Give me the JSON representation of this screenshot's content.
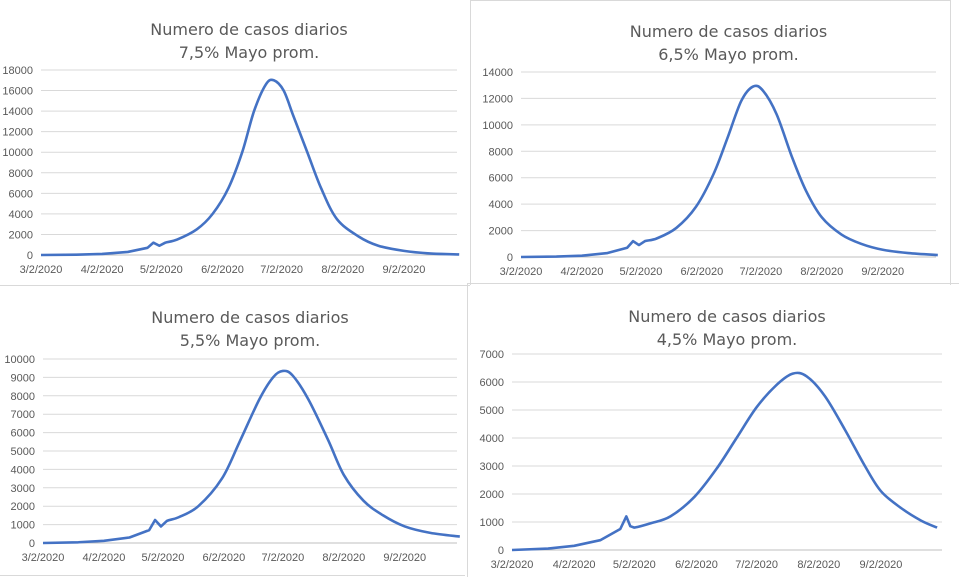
{
  "chart_data": [
    {
      "type": "line",
      "title": [
        "Numero de casos diarios",
        "7,5% Mayo prom."
      ],
      "ylim": [
        0,
        18000
      ],
      "yticks": [
        "0",
        "2000",
        "4000",
        "6000",
        "8000",
        "10000",
        "12000",
        "14000",
        "16000",
        "18000"
      ],
      "xticks": [
        "3/2/2020",
        "4/2/2020",
        "5/2/2020",
        "6/2/2020",
        "7/2/2020",
        "8/2/2020",
        "9/2/2020"
      ],
      "grid": true,
      "color": "#4472c4",
      "x": [
        "3/2",
        "3/20",
        "4/2",
        "4/15",
        "4/25",
        "4/28",
        "5/1",
        "5/4",
        "5/10",
        "5/20",
        "5/28",
        "6/5",
        "6/12",
        "6/18",
        "6/24",
        "6/28",
        "7/3",
        "7/8",
        "7/15",
        "7/22",
        "7/30",
        "8/10",
        "8/20",
        "9/2",
        "9/15",
        "9/30"
      ],
      "y": [
        0,
        30,
        100,
        300,
        700,
        1200,
        900,
        1200,
        1500,
        2500,
        4000,
        6500,
        10000,
        14000,
        16600,
        17000,
        16000,
        13500,
        10000,
        6500,
        3500,
        1800,
        900,
        400,
        150,
        50
      ]
    },
    {
      "type": "line",
      "title": [
        "Numero de casos diarios",
        "6,5% Mayo prom."
      ],
      "ylim": [
        0,
        14000
      ],
      "yticks": [
        "0",
        "2000",
        "4000",
        "6000",
        "8000",
        "10000",
        "12000",
        "14000"
      ],
      "xticks": [
        "3/2/2020",
        "4/2/2020",
        "5/2/2020",
        "6/2/2020",
        "7/2/2020",
        "8/2/2020",
        "9/2/2020"
      ],
      "grid": true,
      "color": "#4472c4",
      "x": [
        "3/2",
        "3/20",
        "4/2",
        "4/15",
        "4/25",
        "4/28",
        "5/1",
        "5/4",
        "5/10",
        "5/20",
        "5/30",
        "6/8",
        "6/15",
        "6/22",
        "6/28",
        "7/3",
        "7/10",
        "7/18",
        "7/25",
        "8/2",
        "8/12",
        "8/22",
        "9/2",
        "9/15",
        "9/30"
      ],
      "y": [
        0,
        30,
        100,
        300,
        700,
        1200,
        900,
        1200,
        1400,
        2200,
        3800,
        6300,
        9000,
        11800,
        12900,
        12600,
        10800,
        7500,
        5000,
        3000,
        1700,
        1000,
        550,
        300,
        150
      ]
    },
    {
      "type": "line",
      "title": [
        "Numero de casos diarios",
        "5,5% Mayo prom."
      ],
      "ylim": [
        0,
        10000
      ],
      "yticks": [
        "0",
        "1000",
        "2000",
        "3000",
        "4000",
        "5000",
        "6000",
        "7000",
        "8000",
        "9000",
        "10000"
      ],
      "xticks": [
        "3/2/2020",
        "4/2/2020",
        "5/2/2020",
        "6/2/2020",
        "7/2/2020",
        "8/2/2020",
        "9/2/2020"
      ],
      "grid": true,
      "color": "#4472c4",
      "x": [
        "3/2",
        "3/20",
        "4/2",
        "4/15",
        "4/25",
        "4/28",
        "5/1",
        "5/4",
        "5/10",
        "5/20",
        "6/1",
        "6/10",
        "6/20",
        "6/27",
        "7/2",
        "7/7",
        "7/15",
        "7/25",
        "8/2",
        "8/12",
        "8/22",
        "9/2",
        "9/15",
        "9/30"
      ],
      "y": [
        0,
        40,
        120,
        300,
        700,
        1250,
        900,
        1200,
        1400,
        2000,
        3500,
        5500,
        7800,
        9000,
        9350,
        9100,
        7800,
        5600,
        3700,
        2300,
        1500,
        900,
        550,
        350
      ]
    },
    {
      "type": "line",
      "title": [
        "Numero de casos diarios",
        "4,5% Mayo prom."
      ],
      "ylim": [
        0,
        7000
      ],
      "yticks": [
        "0",
        "1000",
        "2000",
        "3000",
        "4000",
        "5000",
        "6000",
        "7000"
      ],
      "xticks": [
        "3/2/2020",
        "4/2/2020",
        "5/2/2020",
        "6/2/2020",
        "7/2/2020",
        "8/2/2020",
        "9/2/2020"
      ],
      "grid": true,
      "color": "#4472c4",
      "x": [
        "3/2",
        "3/20",
        "4/2",
        "4/15",
        "4/25",
        "4/28",
        "4/30",
        "5/2",
        "5/10",
        "5/20",
        "6/1",
        "6/12",
        "6/22",
        "7/2",
        "7/12",
        "7/20",
        "7/27",
        "8/5",
        "8/15",
        "8/25",
        "9/2",
        "9/12",
        "9/22",
        "9/30"
      ],
      "y": [
        0,
        50,
        150,
        350,
        750,
        1200,
        850,
        800,
        950,
        1200,
        1900,
        2900,
        4000,
        5100,
        5900,
        6300,
        6200,
        5500,
        4300,
        3000,
        2100,
        1500,
        1050,
        800
      ]
    }
  ]
}
